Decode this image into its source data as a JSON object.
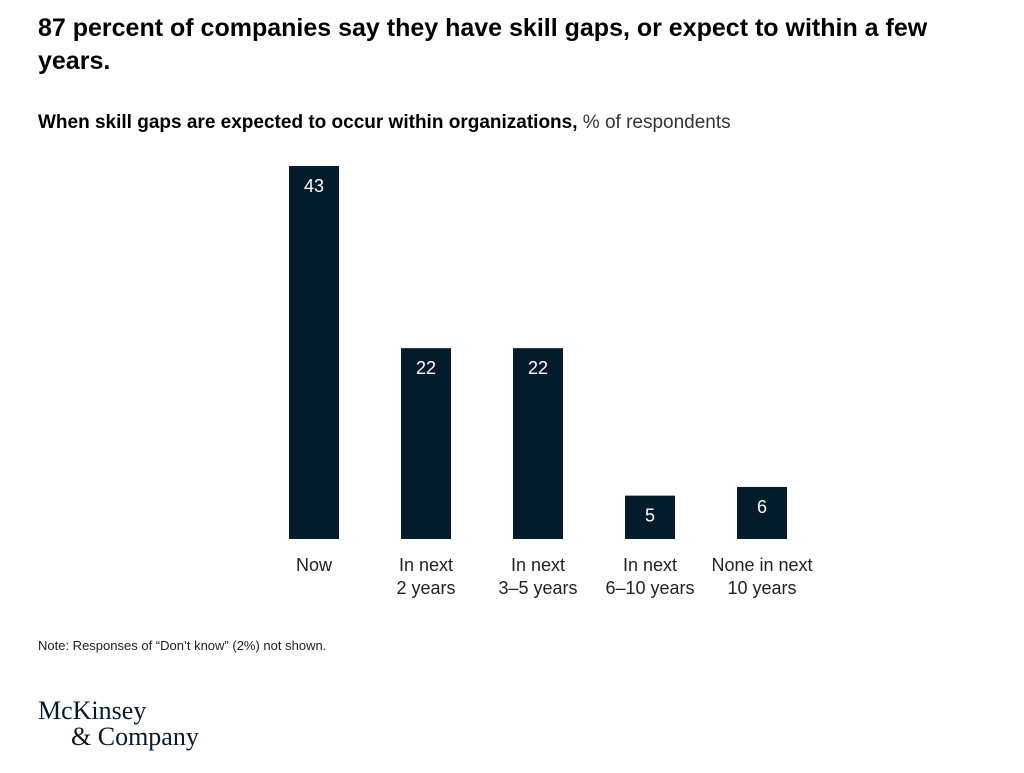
{
  "header": {
    "title": "87 percent of companies say they have skill gaps, or expect to within a few years.",
    "subtitle_bold": "When skill gaps are expected to occur within organizations,",
    "subtitle_light": "% of respondents"
  },
  "chart_data": {
    "type": "bar",
    "categories": [
      [
        "Now"
      ],
      [
        "In next",
        "2 years"
      ],
      [
        "In next",
        "3–5 years"
      ],
      [
        "In next",
        "6–10 years"
      ],
      [
        "None in next",
        "10 years"
      ]
    ],
    "values": [
      43,
      22,
      22,
      5,
      6
    ],
    "ylim": [
      0,
      43
    ],
    "grid": false,
    "legend": "none",
    "bar_color": "#051c2c",
    "label_color": "#ffffff"
  },
  "footer": {
    "note": "Note: Responses of “Don’t know” (2%) not shown.",
    "logo_line1": "McKinsey",
    "logo_line2": "& Company"
  }
}
